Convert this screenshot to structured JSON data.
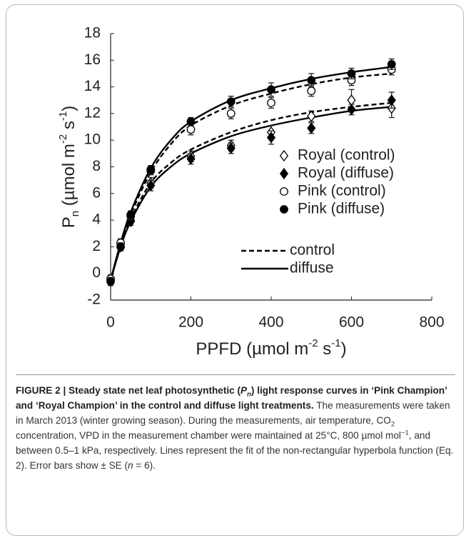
{
  "chart_data": {
    "type": "scatter",
    "x_label": [
      "PPFD (µmol m",
      "-2",
      " s",
      "-1",
      ")"
    ],
    "y_label": [
      "P",
      "n",
      " (µmol m",
      "-2",
      " s",
      "-1",
      ")"
    ],
    "xlim": [
      0,
      800
    ],
    "xticks": [
      0,
      200,
      400,
      600,
      800
    ],
    "ylim": [
      -2,
      18
    ],
    "yticks": [
      -2,
      0,
      2,
      4,
      6,
      8,
      10,
      12,
      14,
      16,
      18
    ],
    "x": [
      0,
      25,
      50,
      100,
      200,
      300,
      400,
      500,
      600,
      700
    ],
    "series": [
      {
        "name": "Royal (control)",
        "marker": "diamond",
        "filled": false,
        "color": "#000000",
        "values": [
          -0.5,
          2.2,
          4.0,
          6.8,
          8.8,
          9.6,
          10.6,
          11.8,
          13.0,
          12.4
        ],
        "errors": [
          0.3,
          0.3,
          0.3,
          0.4,
          0.4,
          0.4,
          0.5,
          0.4,
          0.8,
          0.7
        ]
      },
      {
        "name": "Royal (diffuse)",
        "marker": "diamond",
        "filled": true,
        "color": "#000000",
        "values": [
          -0.6,
          2.0,
          3.9,
          6.6,
          8.6,
          9.4,
          10.2,
          10.9,
          12.3,
          13.0
        ],
        "errors": [
          0.3,
          0.3,
          0.3,
          0.4,
          0.4,
          0.4,
          0.5,
          0.4,
          0.4,
          0.6
        ]
      },
      {
        "name": "Pink (control)",
        "marker": "circle",
        "filled": false,
        "color": "#000000",
        "values": [
          -0.4,
          2.3,
          4.3,
          7.7,
          10.8,
          12.0,
          12.8,
          13.7,
          14.5,
          15.3
        ],
        "errors": [
          0.3,
          0.3,
          0.3,
          0.3,
          0.4,
          0.4,
          0.4,
          0.4,
          0.4,
          0.4
        ]
      },
      {
        "name": "Pink (diffuse)",
        "marker": "circle",
        "filled": true,
        "color": "#000000",
        "values": [
          -0.6,
          2.0,
          4.4,
          7.8,
          11.4,
          12.9,
          13.8,
          14.5,
          15.0,
          15.7
        ],
        "errors": [
          0.3,
          0.3,
          0.3,
          0.3,
          0.3,
          0.4,
          0.5,
          0.5,
          0.4,
          0.4
        ]
      }
    ],
    "fit_x": [
      0,
      25,
      50,
      100,
      150,
      200,
      300,
      400,
      500,
      600,
      700
    ],
    "fits": [
      {
        "name": "control",
        "dashed": true,
        "color": "#000000",
        "curves": [
          [
            -0.5,
            2.1,
            4.1,
            6.8,
            8.3,
            9.3,
            10.6,
            11.5,
            12.1,
            12.5,
            12.8
          ],
          [
            -0.5,
            2.2,
            4.4,
            7.6,
            9.7,
            11.1,
            12.6,
            13.5,
            14.2,
            14.7,
            15.0
          ]
        ]
      },
      {
        "name": "diffuse",
        "dashed": false,
        "color": "#000000",
        "curves": [
          [
            -0.5,
            2.0,
            3.9,
            6.5,
            8.0,
            9.0,
            10.3,
            11.1,
            11.7,
            12.2,
            12.5
          ],
          [
            -0.5,
            2.3,
            4.6,
            7.9,
            10.0,
            11.4,
            13.0,
            13.9,
            14.6,
            15.1,
            15.5
          ]
        ]
      }
    ]
  },
  "caption": [
    {
      "text": "FIGURE 2 | Steady state net leaf photosynthetic (",
      "style": [
        "bold"
      ]
    },
    {
      "text": "P",
      "style": [
        "bold",
        "italic"
      ]
    },
    {
      "text": "n",
      "style": [
        "bold",
        "italic",
        "sub"
      ]
    },
    {
      "text": ") light response curves in ‘Pink Champion’ and ‘Royal Champion’ in the control and diffuse light treatments.",
      "style": [
        "bold"
      ]
    },
    {
      "text": " The measurements were taken in March 2013 (winter growing season). During the measurements, air temperature, CO",
      "style": []
    },
    {
      "text": "2",
      "style": [
        "sub"
      ]
    },
    {
      "text": " concentration, VPD in the measurement chamber were maintained at 25°C, 800 µmol mol",
      "style": []
    },
    {
      "text": "−1",
      "style": [
        "sup"
      ]
    },
    {
      "text": ", and between 0.5–1 kPa, respectively. Lines represent the fit of the non-rectangular hyperbola function (Eq. 2). Error bars show ± SE (",
      "style": []
    },
    {
      "text": "n",
      "style": [
        "italic"
      ]
    },
    {
      "text": " = 6).",
      "style": []
    }
  ]
}
